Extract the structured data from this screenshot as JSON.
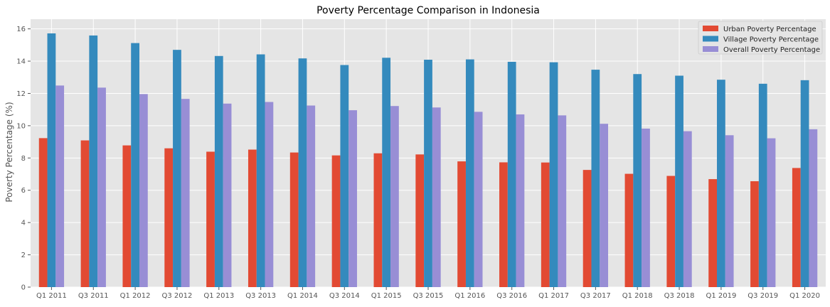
{
  "chart_data": {
    "type": "bar",
    "title": "Poverty Percentage Comparison in Indonesia",
    "xlabel": "",
    "ylabel": "Poverty Percentage (%)",
    "ylim": [
      0,
      16.6
    ],
    "yticks": [
      0,
      2,
      4,
      6,
      8,
      10,
      12,
      14,
      16
    ],
    "grid": true,
    "legend_position": "top-right",
    "categories": [
      "Q1 2011",
      "Q3 2011",
      "Q1 2012",
      "Q3 2012",
      "Q1 2013",
      "Q3 2013",
      "Q1 2014",
      "Q3 2014",
      "Q1 2015",
      "Q3 2015",
      "Q1 2016",
      "Q3 2016",
      "Q1 2017",
      "Q3 2017",
      "Q1 2018",
      "Q3 2018",
      "Q1 2019",
      "Q3 2019",
      "Q1 2020"
    ],
    "series": [
      {
        "name": "Urban Poverty Percentage",
        "color": "#E24A33",
        "values": [
          9.23,
          9.09,
          8.78,
          8.6,
          8.39,
          8.52,
          8.34,
          8.16,
          8.29,
          8.22,
          7.79,
          7.73,
          7.72,
          7.26,
          7.02,
          6.89,
          6.69,
          6.56,
          7.38
        ]
      },
      {
        "name": "Village Poverty Percentage",
        "color": "#348ABD",
        "values": [
          15.72,
          15.59,
          15.12,
          14.7,
          14.32,
          14.42,
          14.17,
          13.76,
          14.21,
          14.09,
          14.11,
          13.96,
          13.93,
          13.47,
          13.2,
          13.1,
          12.85,
          12.6,
          12.82
        ]
      },
      {
        "name": "Overall Poverty Percentage",
        "color": "#988ED5",
        "values": [
          12.49,
          12.36,
          11.96,
          11.66,
          11.37,
          11.47,
          11.25,
          10.96,
          11.22,
          11.13,
          10.86,
          10.7,
          10.64,
          10.12,
          9.82,
          9.66,
          9.41,
          9.22,
          9.78
        ]
      }
    ]
  }
}
